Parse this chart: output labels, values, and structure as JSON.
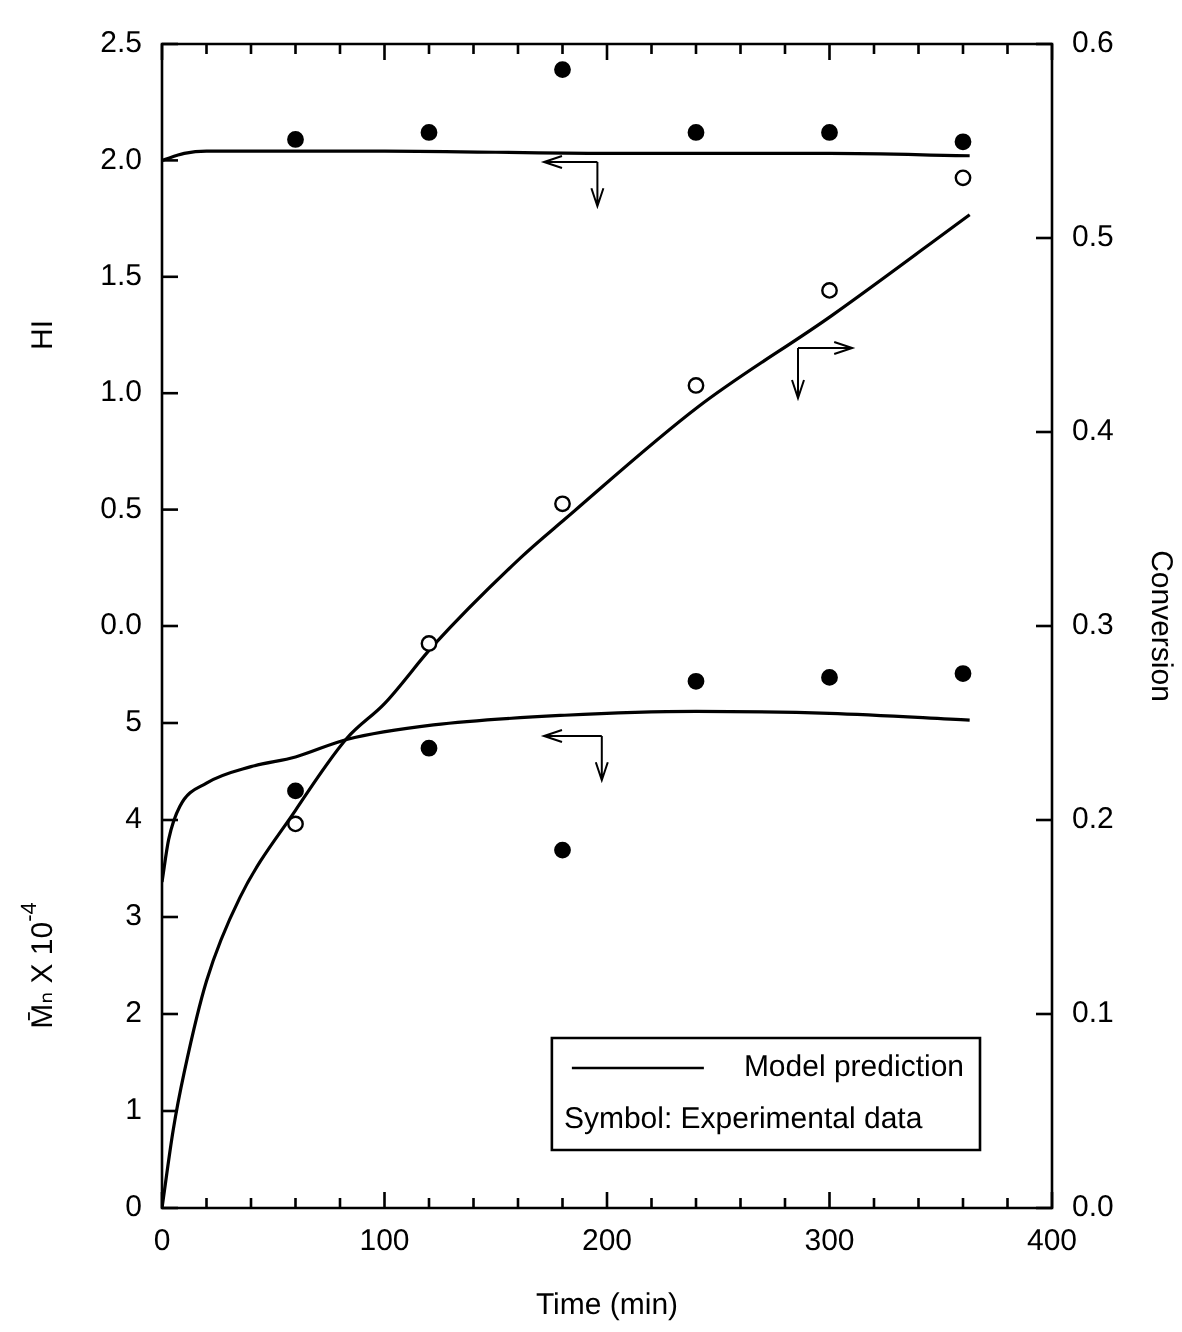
{
  "chart_data": {
    "type": "scatter",
    "xlabel": "Time (min)",
    "ylabel": "M̄ₙ X 10$^{-4}$",
    "y3label": "HI",
    "y2label": "Conversion",
    "xlim": [
      0,
      400
    ],
    "xticks": [
      0,
      {
        "value": 20,
        "label": null
      },
      {
        "value": 40,
        "label": null
      },
      {
        "value": 60,
        "label": null
      },
      {
        "value": 80,
        "label": null
      },
      100,
      {
        "value": 120,
        "label": null
      },
      {
        "value": 140,
        "label": null
      },
      {
        "value": 160,
        "label": null
      },
      {
        "value": 180,
        "label": null
      },
      200,
      {
        "value": 220,
        "label": null
      },
      {
        "value": 240,
        "label": null
      },
      {
        "value": 260,
        "label": null
      },
      {
        "value": 280,
        "label": null
      },
      300,
      {
        "value": 320,
        "label": null
      },
      {
        "value": 340,
        "label": null
      },
      {
        "value": 360,
        "label": null
      },
      {
        "value": 380,
        "label": null
      },
      400
    ],
    "ylim": [
      0,
      12
    ],
    "yticks": [
      0,
      1,
      2,
      3,
      4,
      5
    ],
    "y3lim": [
      -2.5,
      2.5
    ],
    "y3ticks": [
      {
        "value": 0,
        "label": "0.0"
      },
      0.5,
      {
        "value": 1,
        "label": "1.0"
      },
      1.5,
      {
        "value": 2,
        "label": "2.0"
      },
      2.5
    ],
    "y2lim": [
      0,
      0.6
    ],
    "y2ticks": [
      {
        "value": 0,
        "label": "0.0"
      },
      0.1,
      0.2,
      0.3,
      0.4,
      0.5,
      0.6
    ],
    "grid": false,
    "legend": "bottom right",
    "annotations": [
      "Symbol: Experimental data"
    ],
    "series": [
      {
        "type": "scatter",
        "axis": "y3",
        "color": "#000000",
        "marker": "circle",
        "x": [
          60,
          120,
          180,
          240,
          300,
          360
        ],
        "values": [
          2.09,
          2.12,
          2.39,
          2.12,
          2.12,
          2.08
        ]
      },
      {
        "type": "line",
        "name": "Model prediction",
        "axis": "y3",
        "color": "#000000",
        "marker": "none",
        "x": [
          0,
          10,
          20,
          100,
          200,
          300,
          363
        ],
        "values": [
          2.0,
          2.03,
          2.04,
          2.04,
          2.03,
          2.03,
          2.02
        ]
      },
      {
        "type": "scatter",
        "axis": "y2",
        "color": "#ffffff",
        "marker": "circle",
        "x": [
          60,
          120,
          180,
          240,
          300,
          360
        ],
        "values": [
          0.198,
          0.291,
          0.363,
          0.424,
          0.473,
          0.531
        ]
      },
      {
        "type": "line",
        "axis": "y2",
        "color": "#000000",
        "marker": "none",
        "x": [
          0,
          5,
          10,
          20,
          35,
          60,
          83,
          100,
          122,
          161,
          181,
          241,
          301,
          363
        ],
        "values": [
          0,
          0.04,
          0.07,
          0.117,
          0.16,
          0.205,
          0.242,
          0.26,
          0.29,
          0.335,
          0.355,
          0.413,
          0.46,
          0.512
        ]
      },
      {
        "type": "scatter",
        "axis": "y",
        "color": "#000000",
        "marker": "circle",
        "x": [
          60,
          120,
          180,
          240,
          300,
          360
        ],
        "values": [
          4.3,
          4.74,
          3.69,
          5.43,
          5.47,
          5.51
        ]
      },
      {
        "type": "line",
        "axis": "y",
        "color": "#000000",
        "marker": "none",
        "x": [
          0,
          3,
          8,
          20,
          40,
          60,
          83,
          122,
          181,
          240,
          300,
          363
        ],
        "values": [
          3.36,
          3.8,
          4.14,
          4.38,
          4.55,
          4.65,
          4.83,
          4.98,
          5.08,
          5.12,
          5.1,
          5.03
        ]
      }
    ]
  }
}
